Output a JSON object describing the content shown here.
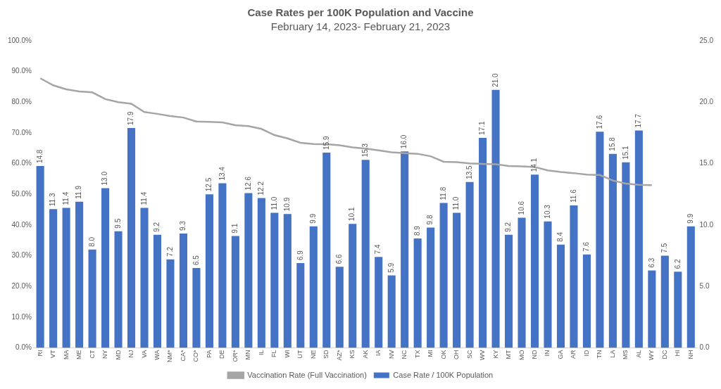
{
  "chart_data": {
    "type": "bar",
    "title": "Case Rates per 100K Population and Vaccine",
    "subtitle": "February 14, 2023- February 21, 2023",
    "categories": [
      "RI",
      "VT",
      "MA",
      "ME",
      "CT",
      "NY",
      "MD",
      "NJ",
      "VA",
      "WA",
      "NM*",
      "CA*",
      "CO*",
      "PA",
      "DE",
      "OR*",
      "MN",
      "IL",
      "FL",
      "WI",
      "UT",
      "NE",
      "SD",
      "AZ*",
      "KS",
      "AK",
      "IA",
      "NV",
      "NC",
      "TX",
      "MI",
      "OK",
      "OH",
      "SC",
      "WV",
      "KY",
      "MT",
      "MO",
      "ND",
      "IN",
      "GA",
      "AR",
      "ID",
      "TN",
      "LA",
      "MS",
      "AL",
      "WY",
      "DC",
      "HI",
      "NH"
    ],
    "series": [
      {
        "name": "Case Rate / 100K Population",
        "type": "bar",
        "color": "#4472c4",
        "axis": "y2",
        "values": [
          14.8,
          11.3,
          11.4,
          11.9,
          8.0,
          13.0,
          9.5,
          17.9,
          11.4,
          9.2,
          7.2,
          9.3,
          6.5,
          12.5,
          13.4,
          9.1,
          12.6,
          12.2,
          11.0,
          10.9,
          6.9,
          9.9,
          15.9,
          6.6,
          10.1,
          15.3,
          7.4,
          5.9,
          16.0,
          8.9,
          9.8,
          11.8,
          11.0,
          13.5,
          17.1,
          21.0,
          9.2,
          10.6,
          14.1,
          10.3,
          8.4,
          11.6,
          7.6,
          17.6,
          15.8,
          15.1,
          17.7,
          6.3,
          7.5,
          6.2,
          9.9
        ],
        "value_labels": [
          "14.8",
          "11.3",
          "11.4",
          "11.9",
          "8.0",
          "13.0",
          "9.5",
          "17.9",
          "11.4",
          "9.2",
          "7.2",
          "9.3",
          "6.5",
          "12.5",
          "13.4",
          "9.1",
          "12.6",
          "12.2",
          "11.0",
          "10.9",
          "6.9",
          "9.9",
          "15.9",
          "6.6",
          "10.1",
          "15.3",
          "7.4",
          "5.9",
          "16.0",
          "8.9",
          "9.8",
          "11.8",
          "11.0",
          "13.5",
          "17.1",
          "21.0",
          "9.2",
          "10.6",
          "14.1",
          "10.3",
          "8.4",
          "11.6",
          "7.6",
          "17.6",
          "15.8",
          "15.1",
          "17.7",
          "6.3",
          "7.5",
          "6.2",
          "9.9"
        ]
      },
      {
        "name": "Vaccination Rate (Full Vaccination)",
        "type": "line",
        "color": "#a5a5a5",
        "marker": "none",
        "values": [
          87.8,
          85.5,
          84.2,
          83.5,
          83.2,
          81.0,
          80.0,
          79.5,
          76.8,
          76.2,
          75.5,
          75.0,
          73.7,
          73.6,
          73.4,
          72.5,
          72.2,
          71.3,
          69.3,
          68.2,
          66.8,
          66.4,
          66.3,
          66.0,
          65.3,
          64.9,
          64.3,
          63.7,
          63.4,
          63.2,
          62.4,
          60.6,
          60.5,
          60.1,
          59.9,
          59.8,
          59.2,
          59.1,
          58.9,
          57.8,
          57.3,
          56.9,
          56.4,
          56.3,
          54.5,
          53.5,
          53.1,
          53.0,
          null,
          null,
          null
        ]
      }
    ],
    "ylim": [
      0,
      100
    ],
    "yticks": [
      {
        "value": 0,
        "label": "0.0%"
      },
      {
        "value": 10,
        "label": "10.0%"
      },
      {
        "value": 20,
        "label": "20.0%"
      },
      {
        "value": 30,
        "label": "30.0%"
      },
      {
        "value": 40,
        "label": "40.0%"
      },
      {
        "value": 50,
        "label": "50.0%"
      },
      {
        "value": 60,
        "label": "60.0%"
      },
      {
        "value": 70,
        "label": "70.0%"
      },
      {
        "value": 80,
        "label": "80.0%"
      },
      {
        "value": 90,
        "label": "90.0%"
      },
      {
        "value": 100,
        "label": "100.0%"
      }
    ],
    "y2lim": [
      0,
      25
    ],
    "y2ticks": [
      {
        "value": 0,
        "label": "0.0"
      },
      {
        "value": 5,
        "label": "5.0"
      },
      {
        "value": 10,
        "label": "10.0"
      },
      {
        "value": 15,
        "label": "15.0"
      },
      {
        "value": 20,
        "label": "20.0"
      },
      {
        "value": 25,
        "label": "25.0"
      }
    ],
    "grid": false,
    "legend": "bottom",
    "data_labels": true
  }
}
